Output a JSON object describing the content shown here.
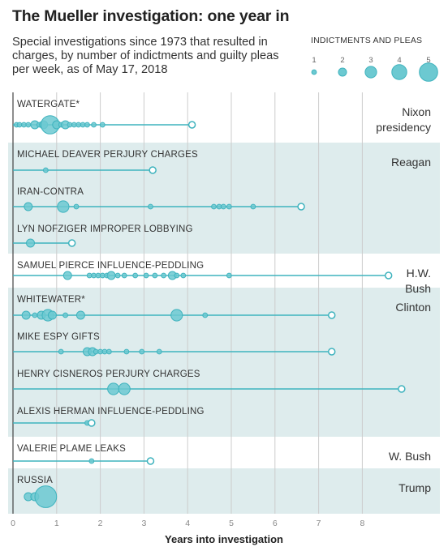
{
  "title": "The Mueller investigation: one year in",
  "subtitle": "Special investigations since 1973 that resulted in charges, by number of indictments and guilty pleas per week, as of May 17, 2018",
  "colors": {
    "dot_fill": "#6cc9d1",
    "dot_stroke": "#3fb3be",
    "line": "#3fb3be",
    "band": "#deeced",
    "axis": "#444444",
    "grid": "#cccccc"
  },
  "chart_data": {
    "type": "scatter",
    "title": "The Mueller investigation: one year in",
    "xlabel": "Years into investigation",
    "xlim": [
      0,
      9
    ],
    "xticks": [
      "0",
      "1",
      "2",
      "3",
      "4",
      "5",
      "6",
      "7",
      "8"
    ],
    "grid": true,
    "size_legend": {
      "title": "INDICTMENTS AND PLEAS",
      "values": [
        1,
        2,
        3,
        4,
        5
      ]
    },
    "presidencies": [
      {
        "label": "Nixon presidency",
        "rows": [
          0
        ],
        "shaded": false
      },
      {
        "label": "Reagan",
        "rows": [
          1,
          2,
          3
        ],
        "shaded": true
      },
      {
        "label": "H.W. Bush",
        "rows": [
          4
        ],
        "shaded": false
      },
      {
        "label": "Clinton",
        "rows": [
          5,
          6,
          7,
          8
        ],
        "shaded": true
      },
      {
        "label": "W. Bush",
        "rows": [
          9
        ],
        "shaded": false
      },
      {
        "label": "Trump",
        "rows": [
          10
        ],
        "shaded": true
      }
    ],
    "series": [
      {
        "name": "WATERGATE*",
        "end": 4.1,
        "points": [
          [
            0.08,
            1
          ],
          [
            0.15,
            1
          ],
          [
            0.25,
            1
          ],
          [
            0.35,
            1
          ],
          [
            0.5,
            2
          ],
          [
            0.6,
            1
          ],
          [
            0.7,
            2
          ],
          [
            0.85,
            5
          ],
          [
            1.0,
            2
          ],
          [
            1.1,
            1
          ],
          [
            1.2,
            2
          ],
          [
            1.3,
            1
          ],
          [
            1.4,
            1
          ],
          [
            1.5,
            1
          ],
          [
            1.6,
            1
          ],
          [
            1.7,
            1
          ],
          [
            1.85,
            1
          ],
          [
            2.05,
            1
          ]
        ]
      },
      {
        "name": "MICHAEL DEAVER PERJURY CHARGES",
        "end": 3.2,
        "points": [
          [
            0.75,
            1
          ]
        ]
      },
      {
        "name": "IRAN-CONTRA",
        "end": 6.6,
        "points": [
          [
            0.35,
            2
          ],
          [
            1.15,
            3
          ],
          [
            1.45,
            1
          ],
          [
            3.15,
            1
          ],
          [
            4.6,
            1
          ],
          [
            4.72,
            1
          ],
          [
            4.82,
            1
          ],
          [
            4.95,
            1
          ],
          [
            5.5,
            1
          ]
        ]
      },
      {
        "name": "LYN NOFZIGER IMPROPER LOBBYING",
        "end": 1.35,
        "points": [
          [
            0.4,
            2
          ]
        ]
      },
      {
        "name": "SAMUEL PIERCE INFLUENCE-PEDDLING",
        "end": 8.6,
        "points": [
          [
            1.25,
            2
          ],
          [
            1.75,
            1
          ],
          [
            1.85,
            1
          ],
          [
            1.95,
            1
          ],
          [
            2.05,
            1
          ],
          [
            2.15,
            1
          ],
          [
            2.25,
            2
          ],
          [
            2.4,
            1
          ],
          [
            2.55,
            1
          ],
          [
            2.8,
            1
          ],
          [
            3.05,
            1
          ],
          [
            3.25,
            1
          ],
          [
            3.45,
            1
          ],
          [
            3.65,
            2
          ],
          [
            3.75,
            1
          ],
          [
            3.9,
            1
          ],
          [
            4.95,
            1
          ]
        ]
      },
      {
        "name": "WHITEWATER*",
        "end": 7.3,
        "points": [
          [
            0.3,
            2
          ],
          [
            0.5,
            1
          ],
          [
            0.65,
            2
          ],
          [
            0.8,
            3
          ],
          [
            0.9,
            2
          ],
          [
            1.2,
            1
          ],
          [
            1.55,
            2
          ],
          [
            3.75,
            3
          ],
          [
            4.4,
            1
          ]
        ]
      },
      {
        "name": "MIKE ESPY GIFTS",
        "end": 7.3,
        "points": [
          [
            1.1,
            1
          ],
          [
            1.7,
            2
          ],
          [
            1.82,
            2
          ],
          [
            1.9,
            1
          ],
          [
            2.0,
            1
          ],
          [
            2.1,
            1
          ],
          [
            2.2,
            1
          ],
          [
            2.6,
            1
          ],
          [
            2.95,
            1
          ],
          [
            3.35,
            1
          ]
        ]
      },
      {
        "name": "HENRY CISNEROS PERJURY CHARGES",
        "end": 8.9,
        "points": [
          [
            2.3,
            3
          ],
          [
            2.55,
            3
          ]
        ]
      },
      {
        "name": "ALEXIS HERMAN INFLUENCE-PEDDLING",
        "end": 1.8,
        "points": [
          [
            1.7,
            1
          ]
        ]
      },
      {
        "name": "VALERIE PLAME LEAKS",
        "end": 3.15,
        "points": [
          [
            1.8,
            1
          ]
        ]
      },
      {
        "name": "RUSSIA",
        "end": null,
        "points": [
          [
            0.35,
            2
          ],
          [
            0.5,
            2
          ],
          [
            0.75,
            6
          ]
        ]
      }
    ]
  }
}
